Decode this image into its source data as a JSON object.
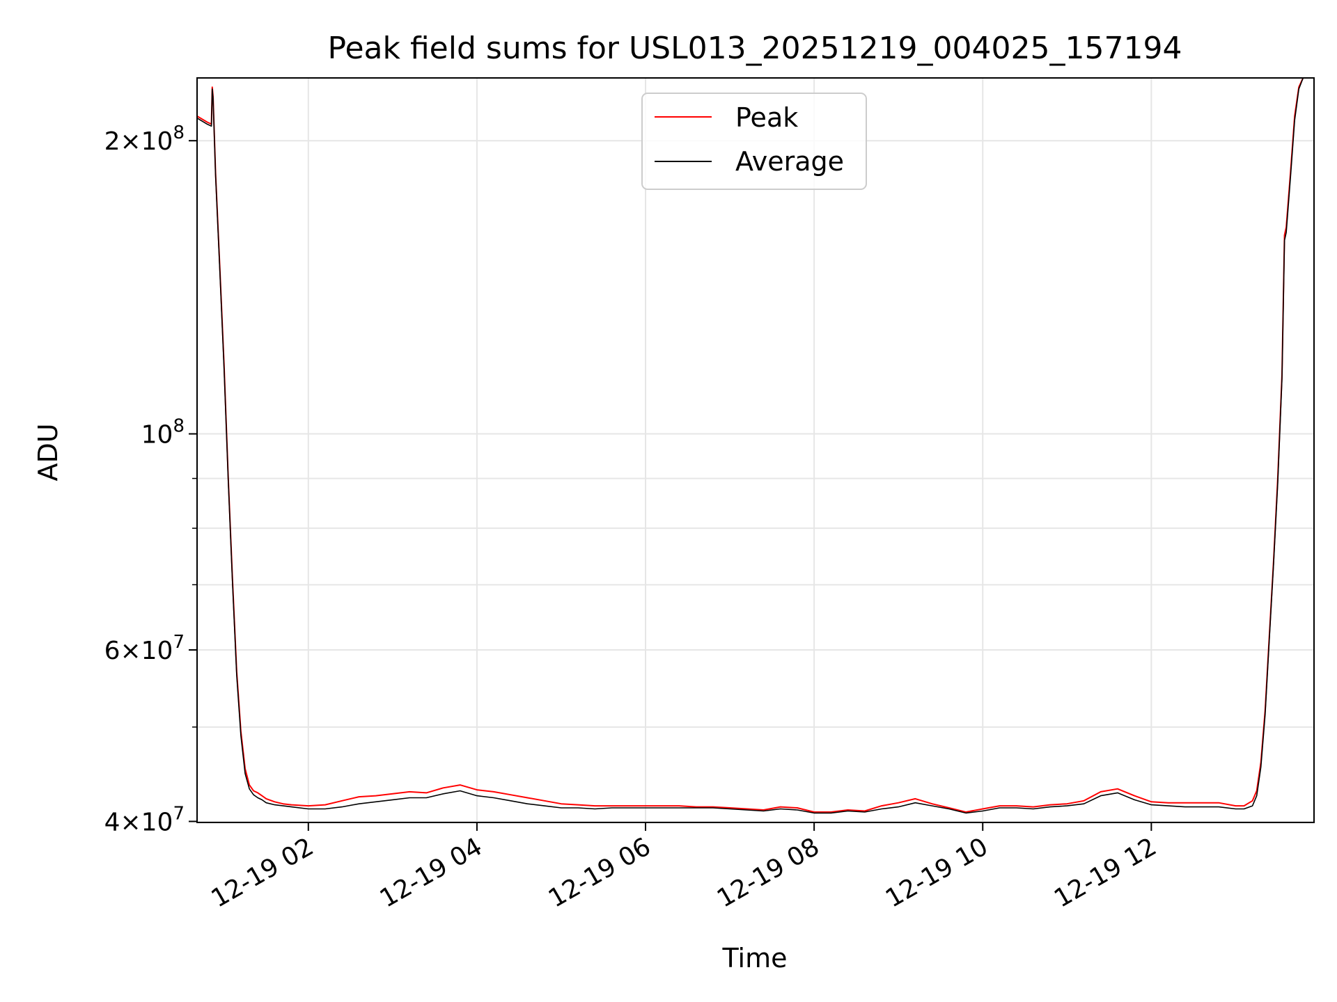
{
  "chart_data": {
    "type": "line",
    "title": "Peak field sums for USL013_20251219_004025_157194",
    "xlabel": "Time",
    "ylabel": "ADU",
    "y_scale": "log",
    "xlim_hours": [
      0.68,
      13.93
    ],
    "ylim": [
      39900000,
      232000000
    ],
    "grid": true,
    "legend_position": "upper center",
    "x_ticks": [
      {
        "value": 2,
        "label": "12-19 02"
      },
      {
        "value": 4,
        "label": "12-19 04"
      },
      {
        "value": 6,
        "label": "12-19 06"
      },
      {
        "value": 8,
        "label": "12-19 08"
      },
      {
        "value": 10,
        "label": "12-19 10"
      },
      {
        "value": 12,
        "label": "12-19 12"
      }
    ],
    "y_major_ticks": [
      {
        "value": 40000000,
        "base": "4×10",
        "exp": "7"
      },
      {
        "value": 60000000,
        "base": "6×10",
        "exp": "7"
      },
      {
        "value": 100000000,
        "base": "10",
        "exp": "8"
      },
      {
        "value": 200000000,
        "base": "2×10",
        "exp": "8"
      }
    ],
    "y_minor_ticks": [
      50000000,
      70000000,
      80000000,
      90000000
    ],
    "series": [
      {
        "name": "Peak",
        "color": "#ff0000",
        "x": [
          0.68,
          0.8,
          0.85,
          0.86,
          0.87,
          0.9,
          0.95,
          1.0,
          1.05,
          1.1,
          1.15,
          1.2,
          1.25,
          1.3,
          1.35,
          1.4,
          1.45,
          1.5,
          1.6,
          1.7,
          1.8,
          2.0,
          2.2,
          2.4,
          2.6,
          2.8,
          3.0,
          3.2,
          3.4,
          3.6,
          3.8,
          4.0,
          4.2,
          4.4,
          4.6,
          4.8,
          5.0,
          5.2,
          5.4,
          5.6,
          5.8,
          6.0,
          6.2,
          6.4,
          6.6,
          6.8,
          7.0,
          7.2,
          7.4,
          7.6,
          7.8,
          8.0,
          8.2,
          8.4,
          8.6,
          8.8,
          9.0,
          9.2,
          9.4,
          9.6,
          9.8,
          10.0,
          10.2,
          10.4,
          10.6,
          10.8,
          11.0,
          11.2,
          11.4,
          11.6,
          11.8,
          12.0,
          12.2,
          12.4,
          12.6,
          12.8,
          13.0,
          13.1,
          13.2,
          13.25,
          13.3,
          13.35,
          13.4,
          13.45,
          13.5,
          13.55,
          13.58,
          13.6,
          13.65,
          13.7,
          13.75,
          13.8,
          13.85,
          13.9,
          13.93
        ],
        "values": [
          212000000,
          209000000,
          208000000,
          227000000,
          222000000,
          185000000,
          148000000,
          118000000,
          90000000,
          71000000,
          57000000,
          49500000,
          45300000,
          43600000,
          43000000,
          42800000,
          42500000,
          42200000,
          41900000,
          41700000,
          41600000,
          41500000,
          41600000,
          42000000,
          42400000,
          42500000,
          42700000,
          42900000,
          42800000,
          43300000,
          43600000,
          43100000,
          42900000,
          42600000,
          42300000,
          42000000,
          41700000,
          41600000,
          41500000,
          41500000,
          41500000,
          41500000,
          41500000,
          41500000,
          41400000,
          41400000,
          41300000,
          41200000,
          41100000,
          41400000,
          41300000,
          40900000,
          40900000,
          41100000,
          41000000,
          41500000,
          41800000,
          42200000,
          41700000,
          41300000,
          40900000,
          41200000,
          41500000,
          41500000,
          41400000,
          41600000,
          41700000,
          42000000,
          42900000,
          43200000,
          42500000,
          41900000,
          41800000,
          41800000,
          41800000,
          41800000,
          41500000,
          41500000,
          42000000,
          43000000,
          46000000,
          52000000,
          62000000,
          74000000,
          90000000,
          115000000,
          160000000,
          163000000,
          185000000,
          212000000,
          227000000,
          232000000,
          232000000,
          232000000,
          232000000
        ]
      },
      {
        "name": "Average",
        "color": "#000000",
        "x": [
          0.68,
          0.8,
          0.85,
          0.86,
          0.87,
          0.9,
          0.95,
          1.0,
          1.05,
          1.1,
          1.15,
          1.2,
          1.25,
          1.3,
          1.35,
          1.4,
          1.45,
          1.5,
          1.6,
          1.7,
          1.8,
          2.0,
          2.2,
          2.4,
          2.6,
          2.8,
          3.0,
          3.2,
          3.4,
          3.6,
          3.8,
          4.0,
          4.2,
          4.4,
          4.6,
          4.8,
          5.0,
          5.2,
          5.4,
          5.6,
          5.8,
          6.0,
          6.2,
          6.4,
          6.6,
          6.8,
          7.0,
          7.2,
          7.4,
          7.6,
          7.8,
          8.0,
          8.2,
          8.4,
          8.6,
          8.8,
          9.0,
          9.2,
          9.4,
          9.6,
          9.8,
          10.0,
          10.2,
          10.4,
          10.6,
          10.8,
          11.0,
          11.2,
          11.4,
          11.6,
          11.8,
          12.0,
          12.2,
          12.4,
          12.6,
          12.8,
          13.0,
          13.1,
          13.2,
          13.25,
          13.3,
          13.35,
          13.4,
          13.45,
          13.5,
          13.55,
          13.58,
          13.6,
          13.65,
          13.7,
          13.75,
          13.8,
          13.85,
          13.9,
          13.93
        ],
        "values": [
          211000000,
          208000000,
          207000000,
          226000000,
          221000000,
          184000000,
          147000000,
          117000000,
          89500000,
          70500000,
          56500000,
          49000000,
          44800000,
          43200000,
          42600000,
          42300000,
          42100000,
          41800000,
          41600000,
          41500000,
          41400000,
          41200000,
          41200000,
          41400000,
          41700000,
          41900000,
          42100000,
          42300000,
          42300000,
          42700000,
          43000000,
          42500000,
          42300000,
          42000000,
          41700000,
          41500000,
          41300000,
          41300000,
          41200000,
          41300000,
          41300000,
          41300000,
          41300000,
          41300000,
          41300000,
          41300000,
          41200000,
          41100000,
          41000000,
          41200000,
          41100000,
          40800000,
          40800000,
          41000000,
          40900000,
          41200000,
          41400000,
          41800000,
          41500000,
          41200000,
          40800000,
          41000000,
          41300000,
          41300000,
          41200000,
          41400000,
          41500000,
          41700000,
          42500000,
          42800000,
          42100000,
          41600000,
          41500000,
          41400000,
          41400000,
          41400000,
          41200000,
          41200000,
          41500000,
          42500000,
          45500000,
          51500000,
          61500000,
          73500000,
          89000000,
          114000000,
          158000000,
          161000000,
          183000000,
          210000000,
          226000000,
          232000000,
          232000000,
          232000000,
          232000000
        ]
      }
    ]
  }
}
